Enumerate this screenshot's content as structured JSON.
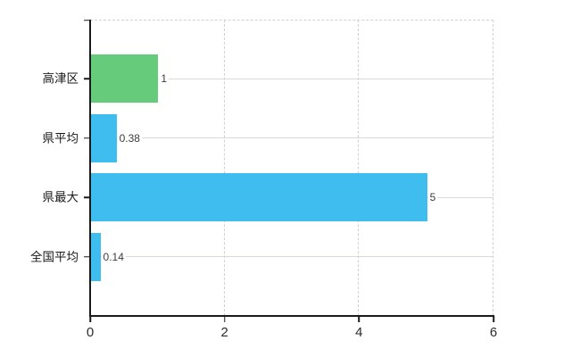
{
  "chart_data": {
    "type": "bar",
    "orientation": "horizontal",
    "title": "",
    "categories": [
      "高津区",
      "県平均",
      "県最大",
      "全国平均"
    ],
    "values": [
      1,
      0.38,
      5,
      0.14
    ],
    "value_labels": [
      "1",
      "0.38",
      "5",
      "0.14"
    ],
    "bar_colors": [
      "#67cb7c",
      "#3fbdee",
      "#3fbdee",
      "#3fbdee"
    ],
    "x_ticks": [
      0,
      2,
      4,
      6
    ],
    "x_tick_labels": [
      "0",
      "2",
      "4",
      "6"
    ],
    "xlim": [
      0,
      6
    ],
    "grid": true,
    "legend": false,
    "gridline_style": {
      "horizontal": "solid",
      "vertical": "dashed",
      "top_border": "dashed"
    }
  },
  "colors": {
    "background": "#ffffff",
    "axis": "#1a1a1a",
    "grid_solid": "#d7dcd4",
    "grid_dashed": "#d6cdd6",
    "value_label": "#3d3d3d",
    "category_label": "#1a1a1a",
    "tick_label": "#2b2b2b",
    "bar_green": "#67cb7c",
    "bar_blue": "#3fbdee"
  }
}
